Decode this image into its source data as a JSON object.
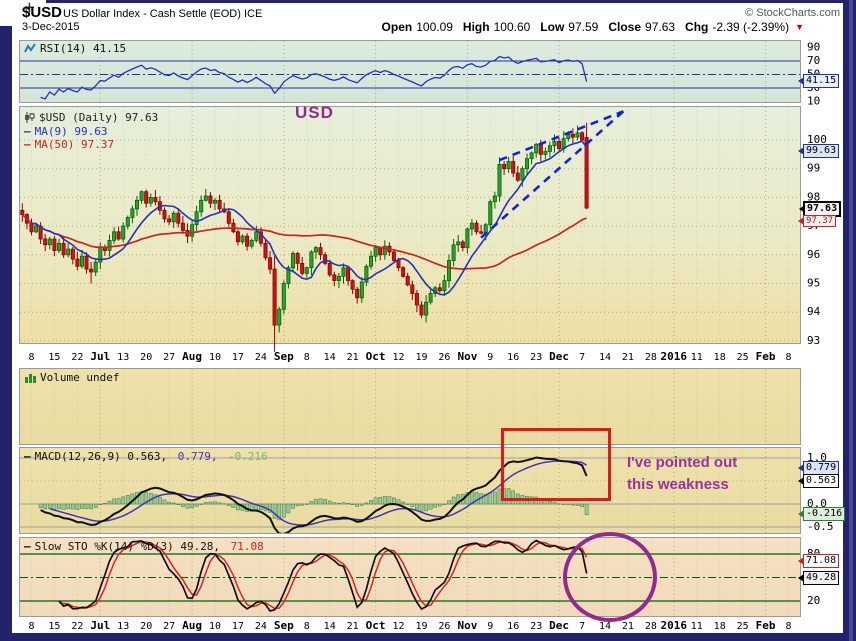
{
  "header": {
    "symbol": "$USD",
    "title": "US Dollar Index - Cash Settle (EOD) ICE",
    "date": "3-Dec-2015",
    "copyright": "© StockCharts.com",
    "quote": {
      "items": [
        {
          "label": "Open",
          "value": "100.09"
        },
        {
          "label": "High",
          "value": "100.60"
        },
        {
          "label": "Low",
          "value": "97.59"
        },
        {
          "label": "Close",
          "value": "97.63"
        },
        {
          "label": "Chg",
          "value": "-2.39 (-2.39%)"
        }
      ],
      "direction_icon": "▼"
    }
  },
  "panels": {
    "rsi": {
      "legend": "RSI(14) 41.15",
      "ticks": [
        "90",
        "70",
        "50",
        "30",
        "10"
      ],
      "callout": "41.15"
    },
    "price": {
      "legend_symbol": "$USD (Daily) 97.63",
      "legend_ma9": "MA(9) 99.63",
      "legend_ma50": "MA(50) 97.37",
      "ticks": [
        "100",
        "99",
        "98",
        "97",
        "96",
        "95",
        "94",
        "93"
      ],
      "callout_ma9": "99.63",
      "callout_close": "97.63",
      "callout_ma50": "97.37"
    },
    "volume": {
      "legend": "Volume undef"
    },
    "macd": {
      "legend_main": "MACD(12,26,9) 0.563,",
      "legend_signal": " 0.779,",
      "legend_hist": " -0.216",
      "ticks": [
        "1.0",
        "0.0",
        "-0.5"
      ],
      "callout_signal": "0.779",
      "callout_macd": "0.563",
      "callout_hist": "-0.216"
    },
    "sto": {
      "legend_main": "Slow STO %K(14) %D(3) 49.28,",
      "legend_d": " 71.08",
      "ticks": [
        "80",
        "20"
      ],
      "callout_d": "71.08",
      "callout_k": "49.28"
    }
  },
  "annotations": {
    "usd_label": "USD",
    "weakness_line1": "I've pointed out",
    "weakness_line2": "this weakness"
  },
  "colors": {
    "up_fill": "#2fa02f",
    "up_stroke": "#006600",
    "down_fill": "#cc1414",
    "down_stroke": "#8b0000",
    "ma9": "#2233bb",
    "ma50": "#cc2222",
    "rsi_line": "#2233bb",
    "rsi_grid": "#2b2bb0",
    "macd_line": "#111111",
    "signal_line": "#4433bb",
    "hist_fill": "#98c998",
    "hist_stroke": "#3d7a3d",
    "sto_k": "#111111",
    "sto_d": "#dd2222",
    "sto_grid": "#006400",
    "wedge": "#1122dd",
    "annotation_purple": "#993399",
    "annotation_red": "#e01818"
  },
  "chart_data": {
    "type": "candlestick+indicators",
    "symbol": "$USD",
    "title": "US Dollar Index - Cash Settle (EOD) ICE",
    "date_shown": "3-Dec-2015",
    "price_axis_range": [
      92.5,
      101.2
    ],
    "x_axis_labels": [
      "8",
      "15",
      "22",
      "Jul",
      "13",
      "20",
      "27",
      "Aug",
      "10",
      "17",
      "24",
      "Sep",
      "8",
      "14",
      "21",
      "Oct",
      "12",
      "19",
      "26",
      "Nov",
      "9",
      "16",
      "23",
      "Dec",
      "7",
      "14",
      "21",
      "28",
      "2016",
      "11",
      "18",
      "25",
      "Feb",
      "8"
    ],
    "month_label_indices": [
      3,
      7,
      11,
      15,
      19,
      23,
      28,
      32
    ],
    "closes": [
      97.4,
      97.1,
      96.8,
      97.0,
      96.55,
      96.35,
      96.55,
      96.15,
      96.4,
      96.0,
      96.2,
      95.85,
      95.6,
      95.95,
      95.5,
      95.4,
      95.75,
      96.25,
      96.15,
      96.5,
      96.8,
      96.55,
      97.0,
      97.3,
      97.6,
      97.9,
      98.2,
      97.8,
      98.0,
      97.85,
      97.55,
      97.25,
      97.15,
      97.45,
      97.1,
      96.85,
      96.65,
      97.05,
      97.5,
      97.9,
      98.05,
      97.8,
      97.9,
      97.6,
      97.5,
      97.1,
      96.8,
      96.45,
      96.65,
      96.3,
      96.5,
      96.8,
      96.4,
      95.9,
      95.5,
      93.55,
      94.1,
      95.0,
      95.55,
      96.05,
      95.7,
      95.35,
      95.55,
      96.1,
      96.25,
      96.0,
      95.7,
      95.3,
      95.1,
      95.25,
      95.55,
      95.1,
      94.8,
      94.5,
      95.05,
      95.6,
      95.95,
      96.25,
      96.0,
      96.3,
      96.1,
      95.8,
      95.55,
      95.25,
      94.95,
      94.65,
      94.25,
      93.9,
      94.35,
      94.65,
      94.85,
      94.75,
      95.1,
      95.8,
      96.35,
      96.45,
      96.25,
      96.9,
      97.1,
      96.8,
      96.75,
      97.05,
      97.85,
      98.05,
      99.15,
      99.0,
      99.25,
      98.85,
      98.6,
      99.0,
      99.35,
      99.55,
      99.85,
      99.5,
      99.6,
      99.8,
      99.95,
      99.7,
      100.05,
      100.2,
      100.1,
      100.25,
      100.0,
      97.63
    ],
    "wick_overrides": {
      "15": {
        "low": 95.0
      },
      "55": {
        "low": 92.62,
        "high": 95.95
      },
      "87": {
        "low": 93.8
      },
      "104": {
        "high": 99.4
      },
      "123": {
        "open": 100.09,
        "high": 100.6,
        "low": 97.59
      }
    },
    "last_candle": {
      "open": 100.09,
      "high": 100.6,
      "low": 97.59,
      "close": 97.63
    },
    "indicators": {
      "rsi14_last": 41.15,
      "ma9_last": 99.63,
      "ma50_last": 97.37,
      "macd_12_26_9_last": {
        "macd": 0.563,
        "signal": 0.779,
        "hist": -0.216
      },
      "slow_sto_14_3_last": {
        "k": 49.28,
        "d": 71.08
      },
      "rsi_levels": [
        70,
        50,
        30
      ],
      "sto_levels": [
        80,
        50,
        20
      ],
      "macd_levels": [
        1.0,
        0.5,
        0.0,
        -0.5
      ]
    },
    "wedge_trendlines": {
      "upper": [
        [
          104,
          99.3
        ],
        [
          131,
          101.0
        ]
      ],
      "lower": [
        [
          100,
          96.6
        ],
        [
          131,
          101.0
        ]
      ]
    }
  }
}
